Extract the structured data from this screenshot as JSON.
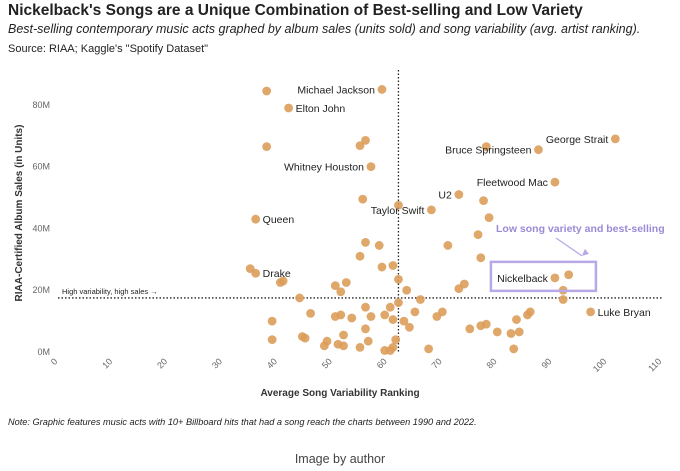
{
  "header": {
    "title": "Nickelback's Songs are a Unique Combination of Best-selling and Low Variety",
    "subtitle": "Best-selling contemporary music acts graphed by album sales (units sold) and song variability (avg. artist ranking).",
    "source": "Source: RIAA; Kaggle's \"Spotify Dataset\""
  },
  "footer": {
    "note": "Note: Graphic features music acts with 10+ Billboard hits that had a song reach the charts between 1990 and 2022.",
    "caption": "Image by author"
  },
  "colors": {
    "point": "#dc9d5a",
    "highlight": "#b8a8e8",
    "annotation": "#9b8ad6"
  },
  "chart_data": {
    "type": "scatter",
    "xlabel": "Average Song Variability Ranking",
    "ylabel": "RIAA-Certified Album Sales (in Units)",
    "xlim": [
      0,
      110
    ],
    "ylim": [
      0,
      90
    ],
    "x_ticks": [
      0,
      10,
      20,
      30,
      40,
      50,
      60,
      70,
      80,
      90,
      100,
      110
    ],
    "y_ticks": [
      0,
      20,
      40,
      60,
      80
    ],
    "y_tick_labels": [
      "0M",
      "20M",
      "40M",
      "60M",
      "80M"
    ],
    "grid": false,
    "reference_lines": {
      "x": 62,
      "y": 17.5,
      "label": "High variability, high sales →"
    },
    "annotation": "Low song variety and best-selling",
    "highlight": "Nickelback",
    "points": [
      {
        "x": 38,
        "y": 84.5,
        "label": ""
      },
      {
        "x": 59,
        "y": 85,
        "label": "Michael Jackson"
      },
      {
        "x": 42,
        "y": 79,
        "label": "Elton John"
      },
      {
        "x": 38,
        "y": 66.5,
        "label": ""
      },
      {
        "x": 55,
        "y": 66.8,
        "label": ""
      },
      {
        "x": 56,
        "y": 68.5,
        "label": ""
      },
      {
        "x": 57,
        "y": 60,
        "label": "Whitney Houston"
      },
      {
        "x": 78,
        "y": 66.5,
        "label": ""
      },
      {
        "x": 87.5,
        "y": 65.5,
        "label": "Bruce Springsteen"
      },
      {
        "x": 101.5,
        "y": 69,
        "label": "George Strait"
      },
      {
        "x": 90.5,
        "y": 55,
        "label": "Fleetwood Mac"
      },
      {
        "x": 73,
        "y": 51,
        "label": "U2"
      },
      {
        "x": 77.5,
        "y": 49,
        "label": ""
      },
      {
        "x": 55.5,
        "y": 49.5,
        "label": ""
      },
      {
        "x": 62,
        "y": 47.5,
        "label": ""
      },
      {
        "x": 68,
        "y": 46,
        "label": "Taylor Swift"
      },
      {
        "x": 36,
        "y": 43,
        "label": "Queen"
      },
      {
        "x": 78.5,
        "y": 43.5,
        "label": ""
      },
      {
        "x": 76.5,
        "y": 38,
        "label": ""
      },
      {
        "x": 71,
        "y": 34.5,
        "label": ""
      },
      {
        "x": 56,
        "y": 35.5,
        "label": ""
      },
      {
        "x": 58.5,
        "y": 34.5,
        "label": ""
      },
      {
        "x": 55,
        "y": 31,
        "label": ""
      },
      {
        "x": 77,
        "y": 30.5,
        "label": ""
      },
      {
        "x": 35,
        "y": 27,
        "label": ""
      },
      {
        "x": 36,
        "y": 25.5,
        "label": "Drake"
      },
      {
        "x": 59,
        "y": 27.5,
        "label": ""
      },
      {
        "x": 61,
        "y": 28,
        "label": ""
      },
      {
        "x": 41,
        "y": 23,
        "label": ""
      },
      {
        "x": 40.5,
        "y": 22.5,
        "label": ""
      },
      {
        "x": 52.5,
        "y": 22.5,
        "label": ""
      },
      {
        "x": 62,
        "y": 23.5,
        "label": ""
      },
      {
        "x": 74,
        "y": 22,
        "label": ""
      },
      {
        "x": 73,
        "y": 20.5,
        "label": ""
      },
      {
        "x": 90.5,
        "y": 24,
        "label": "Nickelback"
      },
      {
        "x": 93,
        "y": 25,
        "label": ""
      },
      {
        "x": 92,
        "y": 20,
        "label": ""
      },
      {
        "x": 63.5,
        "y": 20,
        "label": ""
      },
      {
        "x": 50.5,
        "y": 21.5,
        "label": ""
      },
      {
        "x": 51.5,
        "y": 19.5,
        "label": ""
      },
      {
        "x": 44,
        "y": 17.5,
        "label": ""
      },
      {
        "x": 66,
        "y": 17,
        "label": ""
      },
      {
        "x": 92,
        "y": 17,
        "label": ""
      },
      {
        "x": 62,
        "y": 16,
        "label": ""
      },
      {
        "x": 56,
        "y": 14.5,
        "label": ""
      },
      {
        "x": 60.5,
        "y": 14.5,
        "label": ""
      },
      {
        "x": 97,
        "y": 13,
        "label": "Luke Bryan"
      },
      {
        "x": 86,
        "y": 13,
        "label": ""
      },
      {
        "x": 85.5,
        "y": 12,
        "label": ""
      },
      {
        "x": 70,
        "y": 13,
        "label": ""
      },
      {
        "x": 69,
        "y": 11.5,
        "label": ""
      },
      {
        "x": 83.5,
        "y": 10.5,
        "label": ""
      },
      {
        "x": 65,
        "y": 13,
        "label": ""
      },
      {
        "x": 46,
        "y": 12.5,
        "label": ""
      },
      {
        "x": 50.5,
        "y": 11.5,
        "label": ""
      },
      {
        "x": 51.5,
        "y": 12,
        "label": ""
      },
      {
        "x": 53.5,
        "y": 11,
        "label": ""
      },
      {
        "x": 57,
        "y": 11.5,
        "label": ""
      },
      {
        "x": 59.5,
        "y": 12,
        "label": ""
      },
      {
        "x": 61,
        "y": 10.5,
        "label": ""
      },
      {
        "x": 63,
        "y": 10,
        "label": ""
      },
      {
        "x": 39,
        "y": 10,
        "label": ""
      },
      {
        "x": 75,
        "y": 7.5,
        "label": ""
      },
      {
        "x": 77,
        "y": 8.5,
        "label": ""
      },
      {
        "x": 78,
        "y": 9,
        "label": ""
      },
      {
        "x": 80,
        "y": 6.5,
        "label": ""
      },
      {
        "x": 82.5,
        "y": 6,
        "label": ""
      },
      {
        "x": 84,
        "y": 6.5,
        "label": ""
      },
      {
        "x": 64,
        "y": 8,
        "label": ""
      },
      {
        "x": 56,
        "y": 7.5,
        "label": ""
      },
      {
        "x": 52,
        "y": 5.5,
        "label": ""
      },
      {
        "x": 44.5,
        "y": 5,
        "label": ""
      },
      {
        "x": 45,
        "y": 4.5,
        "label": ""
      },
      {
        "x": 39,
        "y": 4,
        "label": ""
      },
      {
        "x": 49,
        "y": 3.5,
        "label": ""
      },
      {
        "x": 51,
        "y": 2.5,
        "label": ""
      },
      {
        "x": 52,
        "y": 2,
        "label": ""
      },
      {
        "x": 48.5,
        "y": 2,
        "label": ""
      },
      {
        "x": 55,
        "y": 1.5,
        "label": ""
      },
      {
        "x": 56.5,
        "y": 3.5,
        "label": ""
      },
      {
        "x": 61.5,
        "y": 4,
        "label": ""
      },
      {
        "x": 61,
        "y": 1.5,
        "label": ""
      },
      {
        "x": 59.5,
        "y": 0.5,
        "label": ""
      },
      {
        "x": 60.5,
        "y": 0.5,
        "label": ""
      },
      {
        "x": 67.5,
        "y": 1,
        "label": ""
      },
      {
        "x": 83,
        "y": 1,
        "label": ""
      }
    ]
  }
}
